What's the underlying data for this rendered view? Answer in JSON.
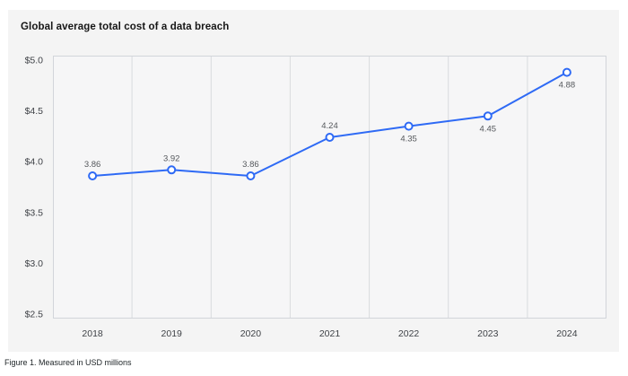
{
  "chart": {
    "title": "Global average total cost of a data breach",
    "caption": "Figure 1. Measured in USD millions",
    "colors": {
      "page_bg": "#ffffff",
      "panel_bg": "#f4f4f4",
      "plot_bg": "#f6f6f7",
      "grid": "#d9dbde",
      "plot_border": "#d2d5da",
      "accent_line": "#2e6af5",
      "marker_fill": "#ffffff",
      "value_label": "#55585c",
      "axis_text": "#3f4247",
      "title_text": "#161616",
      "caption_text": "#21272a"
    }
  },
  "chart_data": {
    "type": "line",
    "title": "Global average total cost of a data breach",
    "subtitle": "",
    "xlabel": "",
    "ylabel": "",
    "categories": [
      "2018",
      "2019",
      "2020",
      "2021",
      "2022",
      "2023",
      "2024"
    ],
    "series": [
      {
        "name": "Global average total cost of a data breach (USD millions)",
        "values": [
          3.86,
          3.92,
          3.86,
          4.24,
          4.35,
          4.45,
          4.88
        ]
      }
    ],
    "value_labels": [
      "3.86",
      "3.92",
      "3.86",
      "4.24",
      "4.35",
      "4.45",
      "4.88"
    ],
    "value_label_positions": [
      "above",
      "above",
      "above",
      "above",
      "below",
      "below",
      "below"
    ],
    "ylim": [
      2.5,
      5.0
    ],
    "y_ticks": [
      2.5,
      3.0,
      3.5,
      4.0,
      4.5,
      5.0
    ],
    "y_tick_labels": [
      "$2.5",
      "$3.0",
      "$3.5",
      "$4.0",
      "$4.5",
      "$5.0"
    ],
    "grid": "vertical-only",
    "legend": "none",
    "marker": "open-circle",
    "annotation": "Figure 1. Measured in USD millions"
  }
}
